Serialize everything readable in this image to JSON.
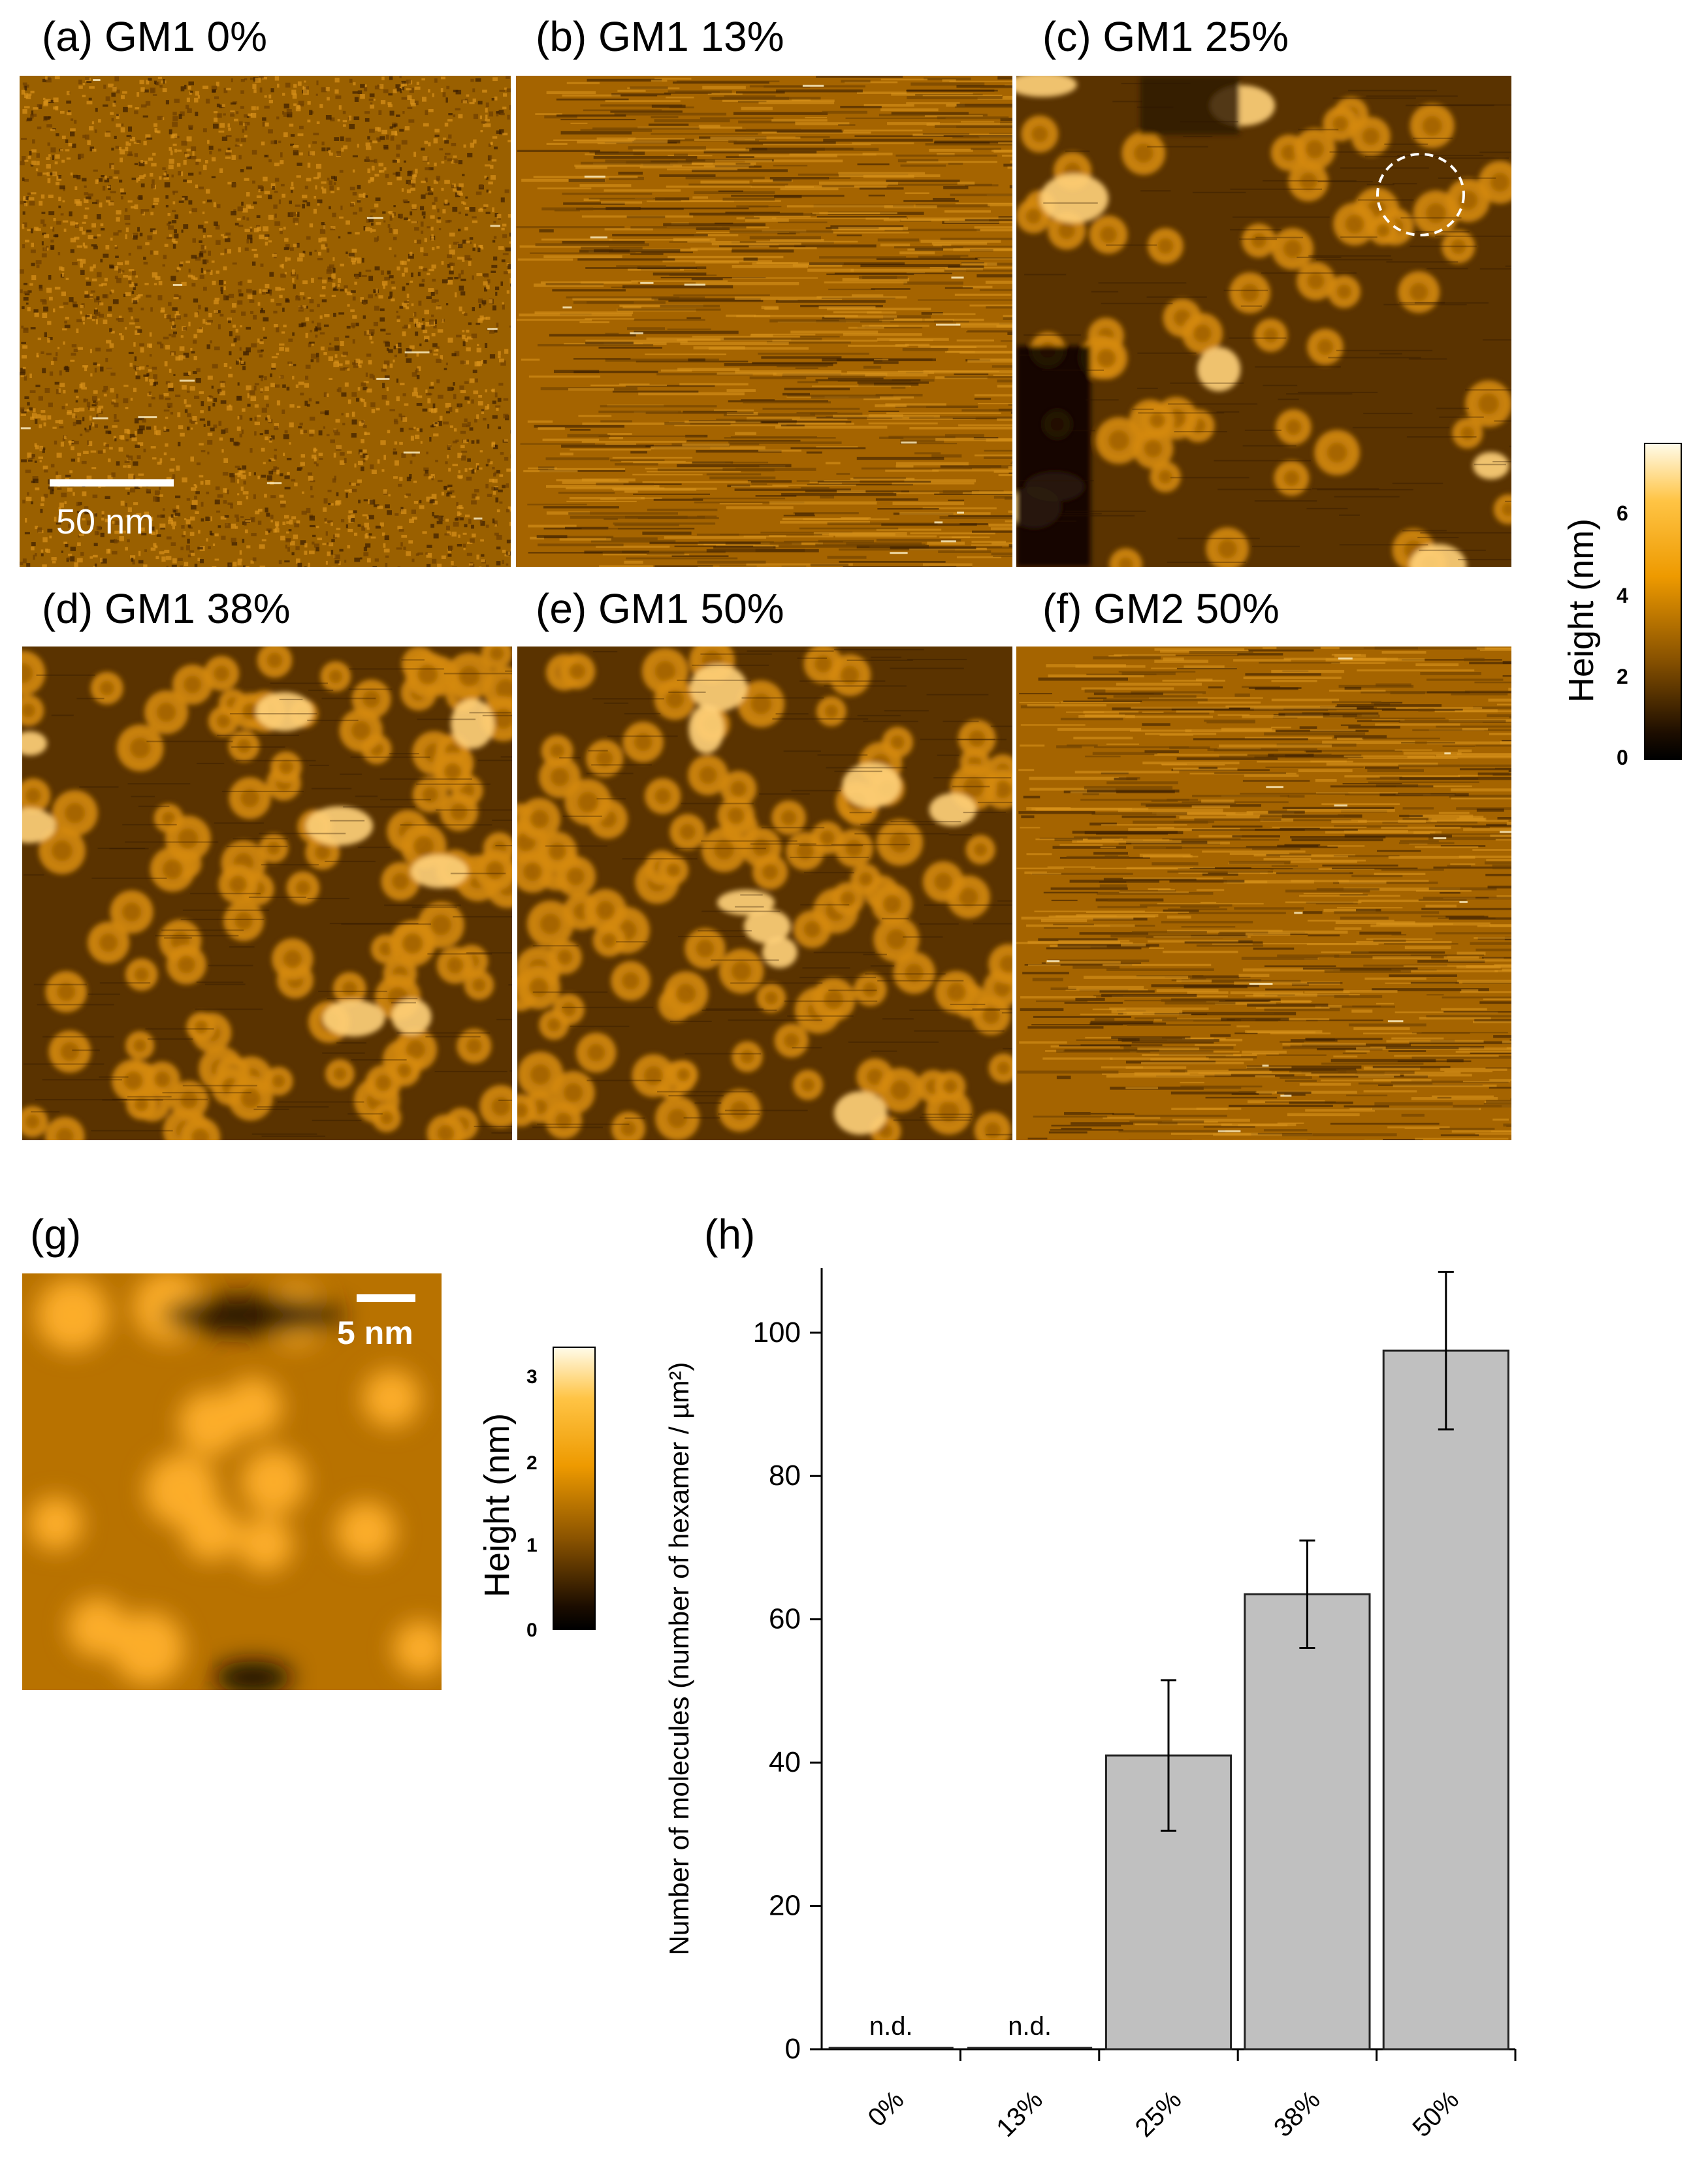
{
  "panels": [
    {
      "label": "(a)",
      "title": "GM1 0%",
      "texture": "noise"
    },
    {
      "label": "(b)",
      "title": "GM1 13%",
      "texture": "streaks"
    },
    {
      "label": "(c)",
      "title": "GM1 25%",
      "texture": "sparse-rings"
    },
    {
      "label": "(d)",
      "title": "GM1 38%",
      "texture": "dense-rings"
    },
    {
      "label": "(e)",
      "title": "GM1 50%",
      "texture": "dense-rings"
    },
    {
      "label": "(f)",
      "title": "GM2 50%",
      "texture": "streaks"
    }
  ],
  "scale_bar_main": "50 nm",
  "colorbar_main": {
    "label": "Height (nm)",
    "ticks": [
      "6",
      "4",
      "2",
      "0"
    ],
    "max": 7.8
  },
  "panel_g": {
    "label": "(g)",
    "scale_bar": "5 nm"
  },
  "colorbar_g": {
    "label": "Height (nm)",
    "ticks": [
      "3",
      "2",
      "1",
      "0"
    ],
    "max": 3.4
  },
  "panel_h": {
    "label": "(h)"
  },
  "colors": {
    "afm_dark": "#140a00",
    "afm_mid": "#b06e00",
    "afm_bright": "#ffb424",
    "afm_white": "#fffbe8",
    "bar_fill": "#c0c0c0",
    "bar_stroke": "#222222"
  },
  "chart_data": {
    "type": "bar",
    "categories": [
      "0%",
      "13%",
      "25%",
      "38%",
      "50%"
    ],
    "values": [
      0,
      0,
      41,
      63.5,
      97.5
    ],
    "error": [
      0,
      0,
      10.5,
      7.5,
      11
    ],
    "value_labels": [
      "n.d.",
      "n.d.",
      "",
      "",
      ""
    ],
    "ylabel": "Number of molecules (number of hexamer / µm²)",
    "yticks": [
      0,
      20,
      40,
      60,
      80,
      100
    ],
    "ylim": [
      0,
      109
    ]
  }
}
